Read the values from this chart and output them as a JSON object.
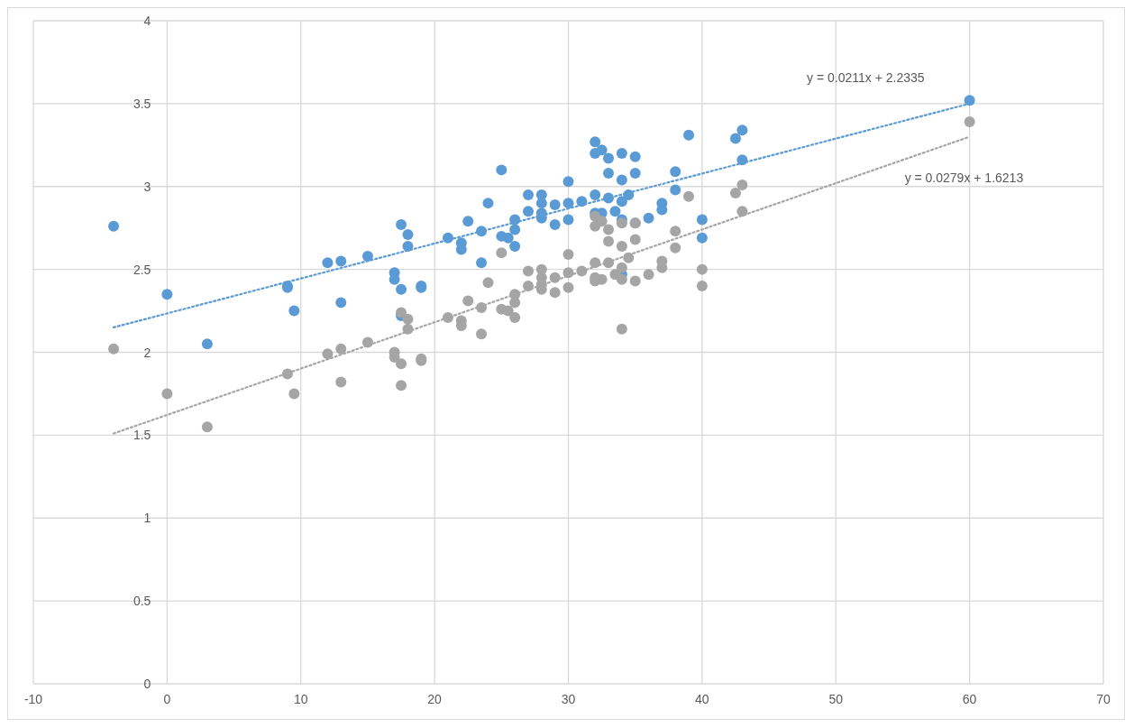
{
  "chart_data": {
    "type": "scatter",
    "xlim": [
      -10,
      70
    ],
    "ylim": [
      0,
      4
    ],
    "xticks": [
      -10,
      0,
      10,
      20,
      30,
      40,
      50,
      60,
      70
    ],
    "yticks": [
      0,
      0.5,
      1,
      1.5,
      2,
      2.5,
      3,
      3.5,
      4
    ],
    "grid": true,
    "marker": "circle",
    "line_style": "dotted",
    "series": [
      {
        "color": "#5b9bd5",
        "x": [
          -4,
          0,
          3,
          9,
          9,
          9.5,
          12,
          13,
          13,
          15,
          17,
          17,
          17.5,
          17.5,
          17.5,
          18,
          18,
          19,
          19,
          21,
          22,
          22,
          22.5,
          23.5,
          23.5,
          24,
          25,
          25,
          25.5,
          26,
          26,
          26,
          27,
          27,
          28,
          28,
          28,
          28,
          29,
          29,
          30,
          30,
          30,
          31,
          32,
          32,
          32,
          32,
          32.5,
          32.5,
          33,
          33,
          33,
          33.5,
          34,
          34,
          34,
          34,
          34,
          34.5,
          35,
          35,
          35,
          36,
          37,
          37,
          38,
          38,
          39,
          40,
          40,
          42.5,
          43,
          43,
          60
        ],
        "values": [
          2.76,
          2.35,
          2.05,
          2.4,
          2.39,
          2.25,
          2.54,
          2.55,
          2.3,
          2.58,
          2.48,
          2.44,
          2.77,
          2.38,
          2.22,
          2.71,
          2.64,
          2.4,
          2.39,
          2.69,
          2.66,
          2.62,
          2.79,
          2.73,
          2.54,
          2.9,
          3.1,
          2.7,
          2.69,
          2.74,
          2.8,
          2.64,
          2.95,
          2.85,
          2.95,
          2.9,
          2.84,
          2.81,
          2.89,
          2.77,
          3.03,
          2.9,
          2.8,
          2.91,
          3.27,
          3.2,
          2.95,
          2.84,
          3.22,
          2.84,
          3.17,
          3.08,
          2.93,
          2.85,
          3.2,
          3.04,
          2.91,
          2.8,
          2.47,
          2.95,
          3.18,
          3.08,
          2.78,
          2.81,
          2.9,
          2.86,
          3.09,
          2.98,
          3.31,
          2.8,
          2.69,
          3.29,
          3.34,
          3.16,
          3.52
        ]
      },
      {
        "color": "#a5a5a5",
        "x": [
          -4,
          0,
          3,
          9,
          9.5,
          12,
          13,
          13,
          15,
          17,
          17,
          17.5,
          17.5,
          17.5,
          18,
          18,
          19,
          19,
          21,
          22,
          22,
          22.5,
          23.5,
          23.5,
          24,
          25,
          25,
          25.5,
          26,
          26,
          26,
          27,
          27,
          28,
          28,
          28,
          28,
          29,
          29,
          30,
          30,
          30,
          31,
          32,
          32,
          32,
          32,
          32,
          32.5,
          32.5,
          33,
          33,
          33,
          33.5,
          34,
          34,
          34,
          34,
          34,
          34.5,
          35,
          35,
          35,
          36,
          37,
          37,
          38,
          38,
          39,
          40,
          40,
          42.5,
          43,
          43,
          60
        ],
        "values": [
          2.02,
          1.75,
          1.55,
          1.87,
          1.75,
          1.99,
          2.02,
          1.82,
          2.06,
          2.0,
          1.97,
          2.24,
          1.93,
          1.8,
          2.2,
          2.14,
          1.96,
          1.95,
          2.21,
          2.19,
          2.16,
          2.31,
          2.27,
          2.11,
          2.42,
          2.6,
          2.26,
          2.25,
          2.35,
          2.3,
          2.21,
          2.49,
          2.4,
          2.5,
          2.45,
          2.41,
          2.38,
          2.45,
          2.36,
          2.59,
          2.48,
          2.39,
          2.49,
          2.82,
          2.76,
          2.54,
          2.45,
          2.43,
          2.79,
          2.44,
          2.74,
          2.67,
          2.54,
          2.47,
          2.78,
          2.64,
          2.51,
          2.44,
          2.14,
          2.57,
          2.78,
          2.68,
          2.43,
          2.47,
          2.55,
          2.51,
          2.73,
          2.63,
          2.94,
          2.5,
          2.4,
          2.96,
          3.01,
          2.85,
          3.39
        ]
      },
      {
        "type": "line",
        "marker": "none",
        "color": "#5b9bd5",
        "x": [
          -4,
          60
        ],
        "values": [
          2.15,
          3.5
        ]
      },
      {
        "type": "line",
        "marker": "none",
        "color": "#a5a5a5",
        "x": [
          -4,
          60
        ],
        "values": [
          1.51,
          3.3
        ]
      }
    ],
    "annotations": [
      "y = 0.0211x + 2.2335",
      "y = 0.0279x + 1.6213"
    ]
  }
}
